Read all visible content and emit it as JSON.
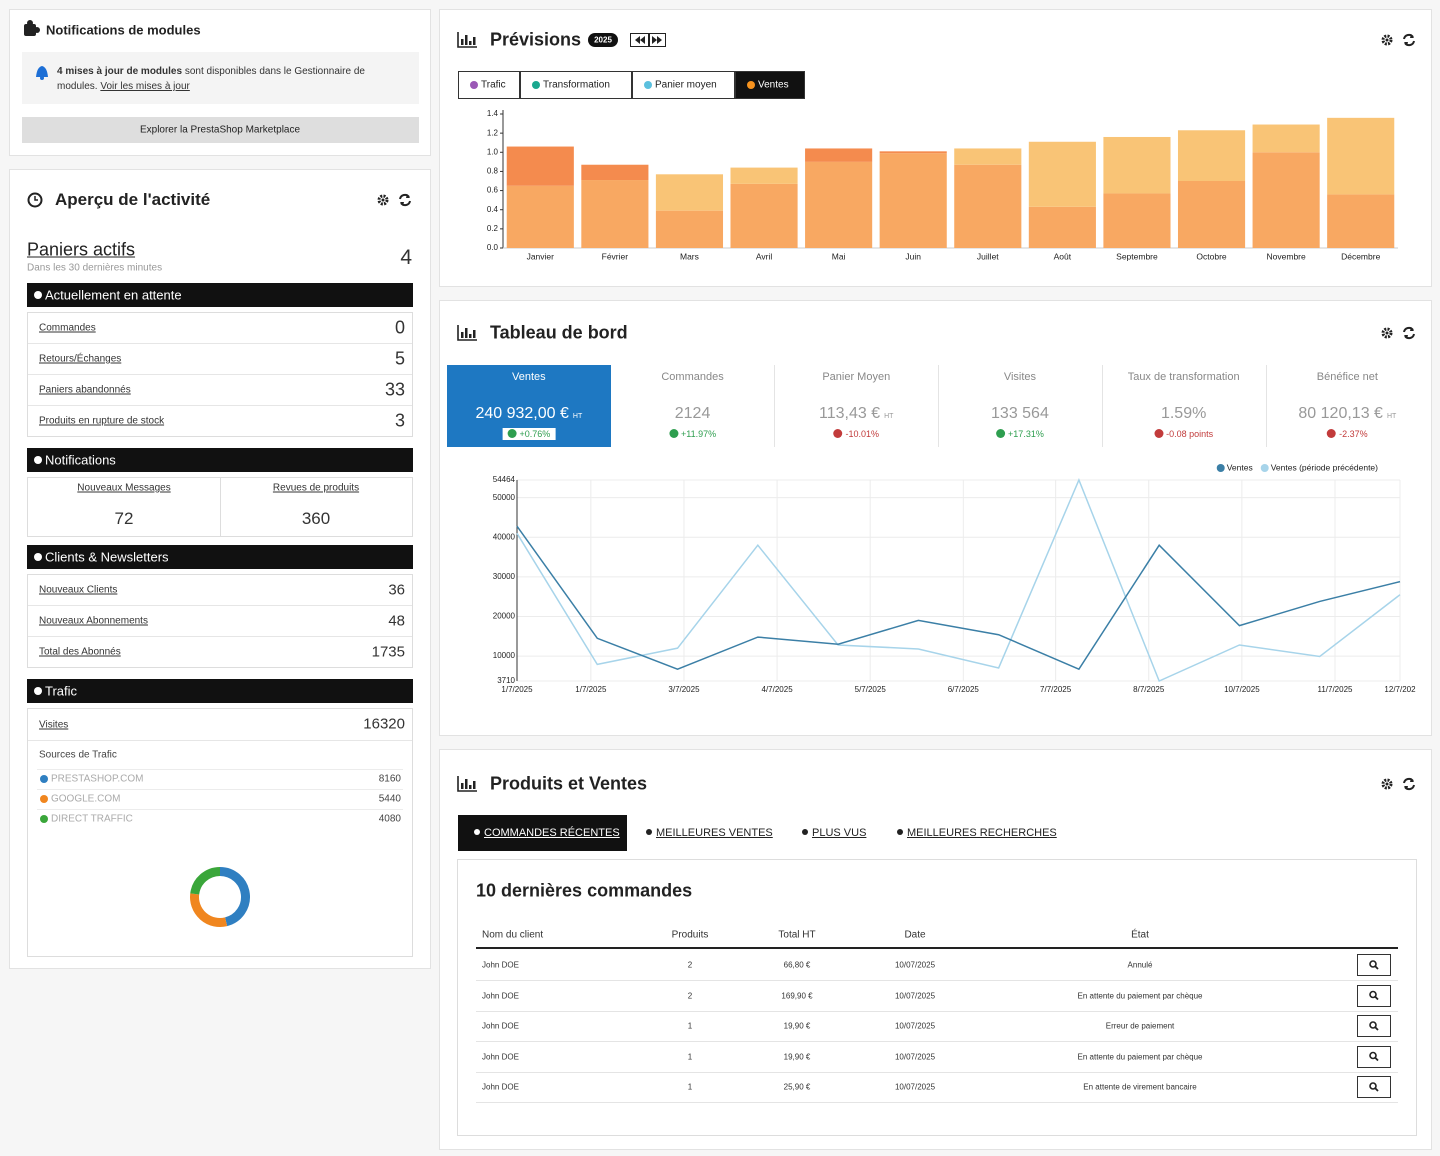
{
  "modules": {
    "title": "Notifications de modules",
    "alert_bold": "4 mises à jour de modules",
    "alert_text": " sont disponibles dans le Gestionnaire de modules. ",
    "alert_link": "Voir les mises à jour",
    "button": "Explorer la PrestaShop Marketplace"
  },
  "activity": {
    "title": "Aperçu de l'activité",
    "active_carts": {
      "label": "Paniers actifs",
      "sub": "Dans les 30 dernières minutes",
      "value": 4
    },
    "pending": {
      "title": "Actuellement en attente",
      "rows": [
        {
          "label": "Commandes",
          "value": 0
        },
        {
          "label": "Retours/Échanges",
          "value": 5
        },
        {
          "label": "Paniers abandonnés",
          "value": 33
        },
        {
          "label": "Produits en rupture de stock",
          "value": 3
        }
      ]
    },
    "notifications": {
      "title": "Notifications",
      "items": [
        {
          "label": "Nouveaux Messages",
          "value": 72
        },
        {
          "label": "Revues de produits",
          "value": 360
        }
      ]
    },
    "customers": {
      "title": "Clients & Newsletters",
      "rows": [
        {
          "label": "Nouveaux Clients",
          "value": 36
        },
        {
          "label": "Nouveaux Abonnements",
          "value": 48
        },
        {
          "label": "Total des Abonnés",
          "value": 1735
        }
      ]
    },
    "traffic": {
      "title": "Trafic",
      "visits": {
        "label": "Visites",
        "value": 16320
      },
      "sources_title": "Sources de Trafic"
    }
  },
  "forecast": {
    "title": "Prévisions",
    "year": "2025",
    "tabs": [
      {
        "label": "Trafic",
        "color": "#9b59b6"
      },
      {
        "label": "Transformation",
        "color": "#1aa88f"
      },
      {
        "label": "Panier moyen",
        "color": "#5bc0de"
      },
      {
        "label": "Ventes",
        "color": "#f7931e"
      }
    ],
    "active_tab": 3
  },
  "dashboard": {
    "title": "Tableau de bord",
    "active_tile": 0,
    "tiles": [
      {
        "label": "Ventes",
        "value": "240 932,00 €",
        "unit": "HT",
        "change": "+0.76%",
        "trend": "up"
      },
      {
        "label": "Commandes",
        "value": "2124",
        "change": "+11.97%",
        "trend": "up"
      },
      {
        "label": "Panier Moyen",
        "value": "113,43 €",
        "unit": "HT",
        "change": "-10.01%",
        "trend": "down"
      },
      {
        "label": "Visites",
        "value": "133 564",
        "change": "+17.31%",
        "trend": "up"
      },
      {
        "label": "Taux de transformation",
        "value": "1.59%",
        "change": "-0.08 points",
        "trend": "down"
      },
      {
        "label": "Bénéfice net",
        "value": "80 120,13 €",
        "unit": "HT",
        "change": "-2.37%",
        "trend": "down"
      }
    ]
  },
  "products": {
    "title": "Produits et Ventes",
    "tabs": [
      "COMMANDES RÉCENTES",
      "MEILLEURES VENTES",
      "PLUS VUS",
      "MEILLEURES RECHERCHES"
    ],
    "active_tab": 0,
    "table_title": "10 dernières commandes",
    "headers": [
      "Nom du client",
      "Produits",
      "Total HT",
      "Date",
      "État"
    ],
    "rows": [
      [
        "John DOE",
        "2",
        "66,80 €",
        "10/07/2025",
        "Annulé"
      ],
      [
        "John DOE",
        "2",
        "169,90 €",
        "10/07/2025",
        "En attente du paiement par chèque"
      ],
      [
        "John DOE",
        "1",
        "19,90 €",
        "10/07/2025",
        "Erreur de paiement"
      ],
      [
        "John DOE",
        "1",
        "19,90 €",
        "10/07/2025",
        "En attente du paiement par chèque"
      ],
      [
        "John DOE",
        "1",
        "25,90 €",
        "10/07/2025",
        "En attente de virement bancaire"
      ]
    ]
  },
  "chart_data": [
    {
      "type": "bar",
      "stacked": true,
      "categories": [
        "Janvier",
        "Février",
        "Mars",
        "Avril",
        "Mai",
        "Juin",
        "Juillet",
        "Août",
        "Septembre",
        "Octobre",
        "Novembre",
        "Décembre"
      ],
      "series": [
        {
          "color": "#f8a862",
          "values": [
            0.65,
            0.71,
            0.39,
            0.67,
            0.9,
            0.99,
            0.87,
            0.43,
            0.57,
            0.7,
            1.0,
            0.56
          ]
        },
        {
          "colors": [
            "#f48b4e",
            "#f48b4e",
            "#f9c476",
            "#f9c476",
            "#f48b4e",
            "#f48b4e",
            "#f9c476",
            "#f9c476",
            "#f9c476",
            "#f9c476",
            "#f9c476",
            "#f9c476"
          ],
          "values": [
            0.41,
            0.16,
            0.38,
            0.17,
            0.14,
            0.02,
            0.17,
            0.68,
            0.59,
            0.53,
            0.29,
            0.8
          ]
        }
      ],
      "ylim": [
        0,
        1.4
      ],
      "yticks": [
        {
          "value": 0,
          "label": "0.0"
        },
        0.2,
        0.4,
        0.6,
        0.8,
        {
          "value": 1,
          "label": "1.0"
        },
        1.2,
        1.4
      ]
    },
    {
      "type": "line",
      "series": [
        {
          "name": "Ventes",
          "color": "#3b7fa6",
          "values": [
            42800,
            14500,
            6700,
            14800,
            13000,
            19000,
            15400,
            6700,
            38000,
            17700,
            23800,
            28800
          ]
        },
        {
          "name": "Ventes (période précédente)",
          "color": "#a7d4ea",
          "values": [
            41000,
            7900,
            12000,
            38000,
            12800,
            11800,
            7000,
            54464,
            3710,
            12800,
            9900,
            25500
          ]
        }
      ],
      "xlim": [
        0,
        11
      ],
      "xticks": [
        {
          "value": 0,
          "label": "1/7/2025"
        },
        {
          "value": 0.92,
          "label": "1/7/2025"
        },
        {
          "value": 2.08,
          "label": "3/7/2025"
        },
        {
          "value": 3.24,
          "label": "4/7/2025"
        },
        {
          "value": 4.4,
          "label": "5/7/2025"
        },
        {
          "value": 5.56,
          "label": "6/7/2025"
        },
        {
          "value": 6.71,
          "label": "7/7/2025"
        },
        {
          "value": 7.87,
          "label": "8/7/2025"
        },
        {
          "value": 9.03,
          "label": "10/7/2025"
        },
        {
          "value": 10.19,
          "label": "11/7/2025"
        },
        {
          "value": 11,
          "label": "12/7/202"
        }
      ],
      "ylim": [
        3710,
        54464
      ],
      "yticks": [
        3710,
        10000,
        20000,
        30000,
        40000,
        50000,
        54464
      ],
      "grid": true,
      "legend": "top-right"
    },
    {
      "type": "donut",
      "categories": [
        "PRESTASHOP.COM",
        "GOOGLE.COM",
        "DIRECT TRAFFIC"
      ],
      "values": [
        8160,
        5440,
        4080
      ],
      "colors": [
        "#2f7fc1",
        "#f0861f",
        "#3aa63a"
      ]
    }
  ]
}
